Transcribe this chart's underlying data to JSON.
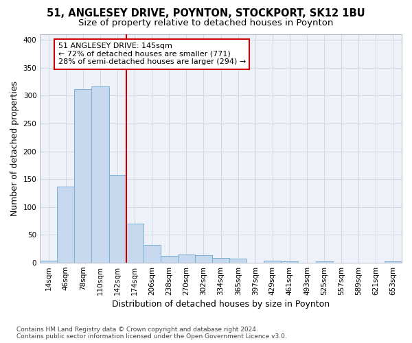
{
  "title1": "51, ANGLESEY DRIVE, POYNTON, STOCKPORT, SK12 1BU",
  "title2": "Size of property relative to detached houses in Poynton",
  "xlabel": "Distribution of detached houses by size in Poynton",
  "ylabel": "Number of detached properties",
  "footnote": "Contains HM Land Registry data © Crown copyright and database right 2024.\nContains public sector information licensed under the Open Government Licence v3.0.",
  "bin_labels": [
    "14sqm",
    "46sqm",
    "78sqm",
    "110sqm",
    "142sqm",
    "174sqm",
    "206sqm",
    "238sqm",
    "270sqm",
    "302sqm",
    "334sqm",
    "365sqm",
    "397sqm",
    "429sqm",
    "461sqm",
    "493sqm",
    "525sqm",
    "557sqm",
    "589sqm",
    "621sqm",
    "653sqm"
  ],
  "bar_values": [
    4,
    137,
    311,
    317,
    158,
    70,
    32,
    13,
    15,
    14,
    9,
    7,
    0,
    4,
    2,
    0,
    2,
    0,
    0,
    0,
    2
  ],
  "bar_color": "#c5d8ee",
  "bar_edge_color": "#7aafd4",
  "highlight_line_color": "#cc0000",
  "annotation_text": "51 ANGLESEY DRIVE: 145sqm\n← 72% of detached houses are smaller (771)\n28% of semi-detached houses are larger (294) →",
  "annotation_box_color": "white",
  "annotation_box_edge_color": "#cc0000",
  "ylim": [
    0,
    410
  ],
  "yticks": [
    0,
    50,
    100,
    150,
    200,
    250,
    300,
    350,
    400
  ],
  "grid_color": "#d0d8e4",
  "background_color": "#eef2f8",
  "title1_fontsize": 10.5,
  "title2_fontsize": 9.5,
  "axis_label_fontsize": 9,
  "tick_fontsize": 7.5,
  "footnote_fontsize": 6.5
}
